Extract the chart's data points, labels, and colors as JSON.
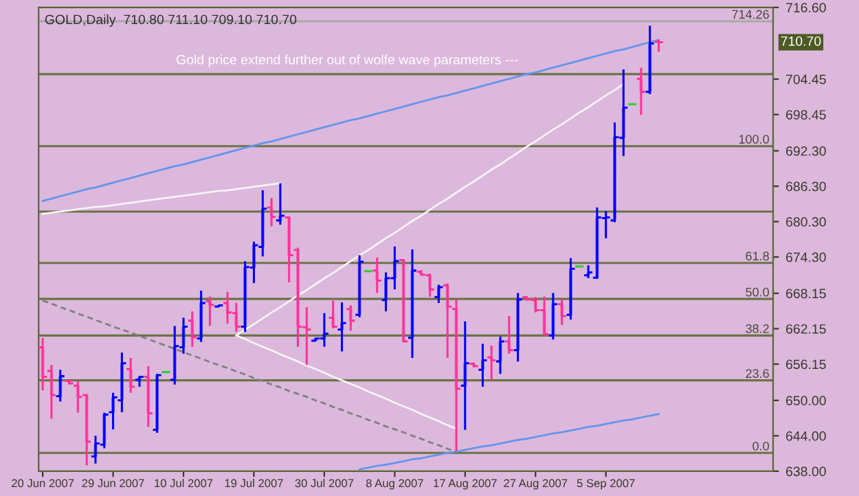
{
  "chart_data": {
    "type": "candlestick",
    "title": "GOLD,Daily  710.80 711.10 709.10 710.70",
    "categories": [
      "20 Jun 2007",
      null,
      null,
      null,
      null,
      null,
      null,
      null,
      "29 Jun 2007",
      null,
      null,
      null,
      null,
      null,
      null,
      null,
      "10 Jul 2007",
      null,
      null,
      null,
      null,
      null,
      null,
      null,
      "19 Jul 2007",
      null,
      null,
      null,
      null,
      null,
      null,
      null,
      "30 Jul 2007",
      null,
      null,
      null,
      null,
      null,
      null,
      null,
      "8 Aug 2007",
      null,
      null,
      null,
      null,
      null,
      null,
      null,
      "17 Aug 2007",
      null,
      null,
      null,
      null,
      null,
      null,
      null,
      "27 Aug 2007",
      null,
      null,
      null,
      null,
      null,
      null,
      null,
      "5 Sep 2007",
      null,
      null,
      null,
      null,
      null,
      null
    ],
    "ohlc": [
      [
        659,
        660.6,
        651.7,
        654
      ],
      [
        655,
        656.0,
        646.9,
        650.9
      ],
      [
        650.7,
        655.2,
        649.8,
        654.1
      ],
      [
        653.3,
        653.3,
        652.7,
        652.9
      ],
      [
        652.5,
        653.3,
        647.9,
        650.6
      ],
      [
        650.9,
        651.1,
        639.0,
        643.0
      ],
      [
        640.5,
        644.0,
        639.3,
        642.7
      ],
      [
        642.5,
        647.9,
        641.9,
        647.6
      ],
      [
        648.0,
        651.3,
        645.1,
        650.5
      ],
      [
        650.0,
        658.1,
        648.0,
        656.3
      ],
      [
        655.3,
        657.2,
        651.3,
        652.3
      ],
      [
        653.5,
        654.1,
        652.3,
        654.0
      ],
      [
        654.0,
        655.8,
        645.5,
        647.8
      ],
      [
        645.0,
        654.5,
        644.5,
        654.3
      ],
      [
        654.8,
        655.0,
        654.6,
        654.8
      ],
      [
        653.5,
        662.6,
        652.7,
        659.2
      ],
      [
        659.0,
        664.0,
        657.9,
        662.5
      ],
      [
        663.5,
        665.1,
        659.1,
        660.7
      ],
      [
        660.5,
        668.6,
        659.9,
        666.5
      ],
      [
        666.8,
        667.6,
        662.6,
        666.2
      ],
      [
        665.9,
        666.2,
        665.8,
        666.1
      ],
      [
        666.5,
        668.4,
        663.0,
        664.9
      ],
      [
        664.8,
        666.5,
        661.6,
        662.5
      ],
      [
        662.5,
        673.6,
        661.6,
        672.6
      ],
      [
        672.5,
        676.9,
        669.9,
        676.3
      ],
      [
        676.0,
        685.6,
        674.4,
        682.5
      ],
      [
        682.7,
        684.3,
        679.5,
        681.1
      ],
      [
        680.5,
        686.8,
        679.8,
        681.3
      ],
      [
        681.0,
        681.0,
        670.0,
        674.6
      ],
      [
        675.5,
        675.9,
        659.1,
        662.5
      ],
      [
        662.4,
        665.8,
        656.0,
        662.0
      ],
      [
        660.1,
        660.6,
        660.0,
        660.5
      ],
      [
        660.5,
        664.8,
        659.1,
        661.3
      ],
      [
        664.0,
        666.9,
        662.2,
        662.5
      ],
      [
        662.0,
        666.6,
        658.3,
        663.1
      ],
      [
        665.5,
        666.1,
        661.8,
        663.5
      ],
      [
        664.5,
        674.6,
        664.1,
        673.5
      ],
      [
        671.9,
        672.0,
        671.8,
        671.9
      ],
      [
        672.0,
        674.2,
        668.2,
        670.3
      ],
      [
        667.0,
        671.7,
        665.1,
        670.7
      ],
      [
        670.7,
        676.1,
        668.8,
        673.6
      ],
      [
        673.8,
        673.8,
        659.9,
        660.0
      ],
      [
        660.6,
        675.6,
        657.2,
        672.0
      ],
      [
        671.8,
        672.1,
        671.1,
        671.3
      ],
      [
        671.2,
        671.5,
        667.6,
        668.8
      ],
      [
        667.5,
        669.6,
        666.5,
        669.2
      ],
      [
        669.5,
        669.8,
        657.2,
        665.9
      ],
      [
        665.5,
        667.1,
        641.4,
        652.0
      ],
      [
        652.5,
        663.4,
        645.0,
        656.3
      ],
      [
        656.2,
        656.4,
        655.6,
        655.8
      ],
      [
        655.2,
        659.6,
        652.3,
        656.8
      ],
      [
        657.3,
        659.3,
        653.5,
        656.8
      ],
      [
        656.6,
        660.8,
        654.5,
        660.0
      ],
      [
        660.0,
        664.3,
        657.9,
        658.5
      ],
      [
        658.5,
        668.2,
        656.6,
        667.1
      ],
      [
        667.5,
        667.6,
        666.9,
        667.1
      ],
      [
        667.0,
        667.5,
        664.9,
        665.3
      ],
      [
        665.3,
        667.6,
        661.0,
        661.2
      ],
      [
        661.0,
        668.2,
        660.3,
        666.3
      ],
      [
        666.3,
        667.1,
        662.8,
        664.3
      ],
      [
        664.5,
        674.1,
        663.7,
        672.3
      ],
      [
        672.7,
        672.8,
        672.6,
        672.7
      ],
      [
        671.2,
        672.9,
        670.7,
        671.7
      ],
      [
        670.8,
        682.7,
        670.6,
        681.0
      ],
      [
        680.9,
        682.1,
        677.5,
        681.0
      ],
      [
        680.5,
        697.1,
        680.2,
        694.6
      ],
      [
        694.5,
        706.1,
        691.4,
        699.6
      ],
      [
        700.2,
        700.3,
        700.1,
        700.2
      ],
      [
        704.5,
        706.4,
        698.4,
        702.3
      ],
      [
        702.3,
        713.5,
        701.9,
        710.5
      ],
      [
        710.8,
        711.1,
        709.1,
        710.7
      ]
    ],
    "colors": [
      "#ff3399",
      "#ff3399",
      "#0000ff",
      "#ff3399",
      "#ff3399",
      "#ff3399",
      "#0000ff",
      "#0000ff",
      "#0000ff",
      "#0000ff",
      "#ff3399",
      "#0000ff",
      "#ff3399",
      "#0000ff",
      "#33cc33",
      "#0000ff",
      "#0000ff",
      "#ff3399",
      "#0000ff",
      "#ff3399",
      "#0000ff",
      "#ff3399",
      "#ff3399",
      "#0000ff",
      "#0000ff",
      "#0000ff",
      "#ff3399",
      "#0000ff",
      "#ff3399",
      "#ff3399",
      "#ff3399",
      "#0000ff",
      "#0000ff",
      "#ff3399",
      "#0000ff",
      "#ff3399",
      "#0000ff",
      "#33cc33",
      "#ff3399",
      "#0000ff",
      "#0000ff",
      "#ff3399",
      "#0000ff",
      "#ff3399",
      "#ff3399",
      "#0000ff",
      "#ff3399",
      "#ff3399",
      "#0000ff",
      "#ff3399",
      "#0000ff",
      "#ff3399",
      "#0000ff",
      "#ff3399",
      "#0000ff",
      "#ff3399",
      "#ff3399",
      "#ff3399",
      "#0000ff",
      "#ff3399",
      "#0000ff",
      "#33cc33",
      "#0000ff",
      "#0000ff",
      "#0000ff",
      "#0000ff",
      "#0000ff",
      "#33cc33",
      "#ff3399",
      "#0000ff",
      "#ff3399"
    ],
    "series": [
      {
        "type": "line",
        "color": "#6495ed",
        "values": [
          683.8,
          684.2,
          684.6,
          685.0,
          685.4,
          685.8,
          686.1,
          686.5,
          686.9,
          687.3,
          687.7,
          688.1,
          688.5,
          688.9,
          689.3,
          689.7,
          690.0,
          690.4,
          690.8,
          691.2,
          691.6,
          692.0,
          692.4,
          692.8,
          693.2,
          693.6,
          693.9,
          694.3,
          694.7,
          695.1,
          695.5,
          695.9,
          696.3,
          696.7,
          697.1,
          697.5,
          697.8,
          698.2,
          698.6,
          699.0,
          699.4,
          699.8,
          700.2,
          700.6,
          701.0,
          701.4,
          701.7,
          702.1,
          702.5,
          702.9,
          703.3,
          703.7,
          704.1,
          704.5,
          704.9,
          705.3,
          705.6,
          706.0,
          706.4,
          706.8,
          707.2,
          707.6,
          708.0,
          708.4,
          708.8,
          709.2,
          709.5,
          709.9,
          710.3,
          710.7,
          711.1
        ]
      },
      {
        "type": "line",
        "color": "#6495ed",
        "values": [
          null,
          null,
          null,
          null,
          null,
          null,
          null,
          null,
          null,
          null,
          null,
          null,
          null,
          null,
          null,
          null,
          null,
          null,
          null,
          null,
          null,
          null,
          null,
          null,
          null,
          null,
          null,
          null,
          null,
          null,
          null,
          null,
          null,
          null,
          null,
          null,
          638.3,
          638.6,
          638.9,
          639.1,
          639.4,
          639.7,
          640.0,
          640.2,
          640.5,
          640.8,
          641.1,
          641.3,
          641.6,
          641.9,
          642.2,
          642.4,
          642.7,
          643.0,
          643.3,
          643.5,
          643.8,
          644.1,
          644.4,
          644.6,
          644.9,
          645.2,
          645.5,
          645.7,
          646.0,
          646.3,
          646.6,
          646.8,
          647.1,
          647.4,
          647.7
        ]
      },
      {
        "type": "line",
        "color": "#f4f4f4",
        "values": [
          681.6,
          681.8,
          682.0,
          682.2,
          682.4,
          682.6,
          682.8,
          682.9,
          683.1,
          683.3,
          683.5,
          683.7,
          683.9,
          684.1,
          684.3,
          684.5,
          684.7,
          684.9,
          685.1,
          685.3,
          685.5,
          685.6,
          685.8,
          686.0,
          686.2,
          686.4,
          686.6,
          686.8,
          null,
          null,
          null,
          null,
          null,
          null,
          null,
          null,
          null,
          null,
          null,
          null,
          null,
          null,
          null,
          null,
          null,
          null,
          null,
          null,
          null,
          null,
          null,
          null,
          null,
          null,
          null,
          null,
          null,
          null,
          null,
          null,
          null,
          null,
          null,
          null,
          null,
          null,
          null,
          null,
          null,
          null,
          null
        ]
      },
      {
        "type": "line",
        "color": "#f4f4f4",
        "values": [
          null,
          null,
          null,
          null,
          null,
          null,
          null,
          null,
          null,
          null,
          null,
          null,
          null,
          null,
          null,
          null,
          null,
          null,
          null,
          null,
          null,
          null,
          661.0,
          662.0,
          662.9,
          663.9,
          664.9,
          665.8,
          666.8,
          667.8,
          668.7,
          669.7,
          670.7,
          671.6,
          672.6,
          673.6,
          674.6,
          675.5,
          676.5,
          677.5,
          678.4,
          679.4,
          680.4,
          681.3,
          682.3,
          683.3,
          684.2,
          685.2,
          686.2,
          687.1,
          688.1,
          689.1,
          690.0,
          691.0,
          692.0,
          693.0,
          693.9,
          694.9,
          695.9,
          696.8,
          697.8,
          698.8,
          699.7,
          700.7,
          701.7,
          702.6,
          703.6,
          null,
          null,
          null,
          null
        ]
      },
      {
        "type": "line",
        "color": "#f4f4f4",
        "values": [
          null,
          null,
          null,
          null,
          null,
          null,
          null,
          null,
          null,
          null,
          null,
          null,
          null,
          null,
          null,
          null,
          null,
          null,
          null,
          null,
          null,
          null,
          661.0,
          660.4,
          659.7,
          659.1,
          658.5,
          657.8,
          657.2,
          656.6,
          655.9,
          655.3,
          654.7,
          654.0,
          653.4,
          652.8,
          652.2,
          651.5,
          650.9,
          650.3,
          649.6,
          649.0,
          648.4,
          647.7,
          647.1,
          646.5,
          645.8,
          645.2,
          null,
          null,
          null,
          null,
          null,
          null,
          null,
          null,
          null,
          null,
          null,
          null,
          null,
          null,
          null,
          null,
          null,
          null,
          null,
          null,
          null,
          null,
          null
        ]
      },
      {
        "type": "line",
        "color": "#808080",
        "line_style": "dashed",
        "values": [
          666.9,
          666.4,
          665.8,
          665.3,
          664.7,
          664.2,
          663.6,
          663.1,
          662.5,
          662.0,
          661.5,
          660.9,
          660.4,
          659.8,
          659.3,
          658.7,
          658.2,
          657.6,
          657.1,
          656.5,
          656.0,
          655.5,
          654.9,
          654.4,
          653.8,
          653.3,
          652.7,
          652.2,
          651.6,
          651.1,
          650.6,
          650.0,
          649.5,
          648.9,
          648.4,
          647.8,
          647.3,
          646.7,
          646.2,
          645.6,
          645.1,
          644.6,
          644.0,
          643.5,
          642.9,
          642.4,
          641.8,
          641.3,
          null,
          null,
          null,
          null,
          null,
          null,
          null,
          null,
          null,
          null,
          null,
          null,
          null,
          null,
          null,
          null,
          null,
          null,
          null,
          null,
          null,
          null,
          null
        ]
      }
    ],
    "ylim": [
      638,
      716.6
    ],
    "yticks": [
      {
        "value": 716.6,
        "label": "716.60"
      },
      {
        "value": 704.45,
        "label": "704.45"
      },
      {
        "value": 698.45,
        "label": "698.45"
      },
      {
        "value": 692.3,
        "label": "692.30"
      },
      {
        "value": 686.3,
        "label": "686.30"
      },
      {
        "value": 680.3,
        "label": "680.30"
      },
      {
        "value": 674.3,
        "label": "674.30"
      },
      {
        "value": 668.15,
        "label": "668.15"
      },
      {
        "value": 662.15,
        "label": "662.15"
      },
      {
        "value": 656.15,
        "label": "656.15"
      },
      {
        "value": 650.0,
        "label": "650.00"
      },
      {
        "value": 644.0,
        "label": "644.00"
      },
      {
        "value": 638.0,
        "label": "638.00"
      }
    ],
    "ref_lines": [
      {
        "axis": "y",
        "value": 714.26,
        "label": "714.26",
        "color": "#a8a8a8"
      },
      {
        "axis": "y",
        "value": 705.3,
        "label": null,
        "color": "#6b7346"
      },
      {
        "axis": "y",
        "value": 693.1,
        "label": null,
        "color": "#6b7346"
      },
      {
        "axis": "y",
        "value": 682.0,
        "label": null,
        "color": "#6b7346"
      },
      {
        "axis": "y",
        "value": 673.3,
        "label": null,
        "color": "#6b7346"
      },
      {
        "axis": "y",
        "value": 667.2,
        "label": null,
        "color": "#6b7346"
      },
      {
        "axis": "y",
        "value": 661.0,
        "label": null,
        "color": "#6b7346"
      },
      {
        "axis": "y",
        "value": 653.4,
        "label": null,
        "color": "#6b7346"
      },
      {
        "axis": "y",
        "value": 641.1,
        "label": null,
        "color": "#6b7346"
      }
    ],
    "annotations": [
      "Gold price extend further out of wolfe wave parameters ---",
      "710.70",
      {
        "text": "100.0",
        "y": 693.1
      },
      {
        "text": "61.8",
        "y": 673.3
      },
      {
        "text": "50.0",
        "y": 667.2
      },
      {
        "text": "38.2",
        "y": 661.0
      },
      {
        "text": "23.6",
        "y": 653.4
      },
      {
        "text": "0.0",
        "y": 641.1
      }
    ],
    "grid": false,
    "legend": false
  }
}
